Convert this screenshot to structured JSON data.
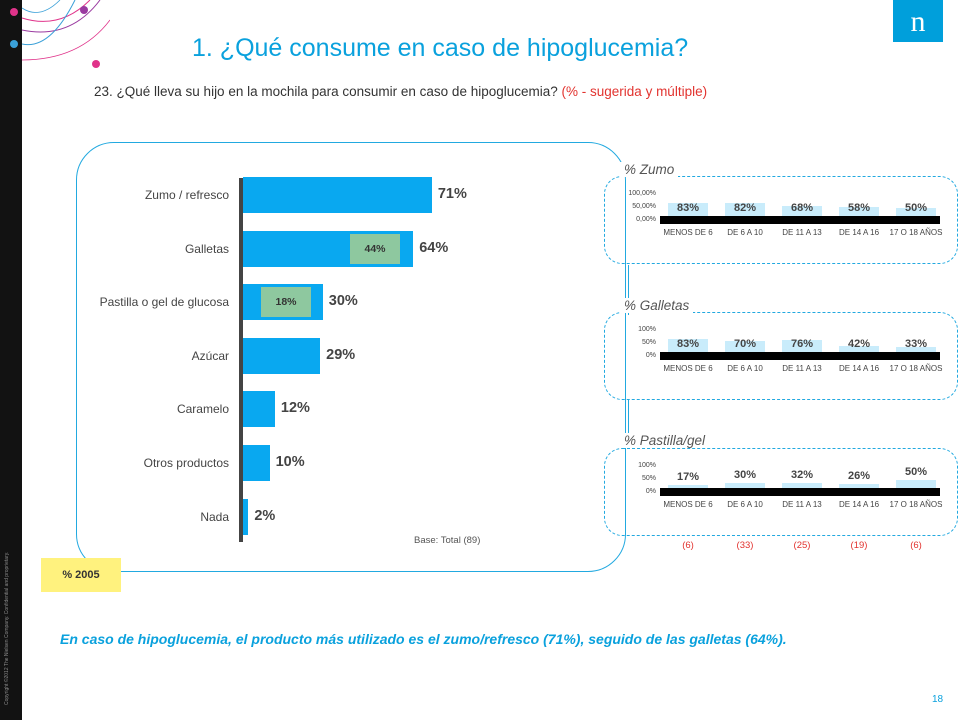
{
  "header": {
    "title": "1. ¿Qué consume en caso de hipoglucemia?",
    "question": "23. ¿Qué lleva su hijo en la mochila para consumir en caso de hipoglucemia?",
    "question_note": "(% - sugerida y múltiple)"
  },
  "brand": {
    "logo_letter": "n",
    "logo_color": "#009fdb",
    "accent": "#0aa1dd",
    "bar_color": "#09a8f0",
    "old_bar_color": "#8ec89f"
  },
  "copyright": "Copyright ©2012 The Nielsen Company. Confidential and proprietary.",
  "chart_data": [
    {
      "type": "bar",
      "orientation": "horizontal",
      "categories": [
        "Zumo / refresco",
        "Galletas",
        "Pastilla o gel de glucosa",
        "Azúcar",
        "Caramelo",
        "Otros productos",
        "Nada"
      ],
      "series": [
        {
          "values": [
            71,
            64,
            30,
            29,
            12,
            10,
            2
          ],
          "labels": [
            "71%",
            "64%",
            "30%",
            "29%",
            "12%",
            "10%",
            "2%"
          ]
        },
        {
          "name": "% 2005",
          "values": [
            null,
            44,
            18,
            null,
            null,
            null,
            null
          ],
          "labels": [
            "",
            "44%",
            "18%",
            "",
            "",
            "",
            ""
          ]
        }
      ],
      "base_note": "Base: Total (89)",
      "legend_label": "% 2005",
      "xlim": [
        0,
        100
      ]
    },
    {
      "type": "bar",
      "title": "% Zumo",
      "categories": [
        "MENOS DE 6",
        "DE 6 A 10",
        "DE 11 A 13",
        "DE 14 A 16",
        "17 O 18 AÑOS"
      ],
      "values": [
        83,
        82,
        68,
        58,
        50
      ],
      "labels": [
        "83%",
        "82%",
        "68%",
        "58%",
        "50%"
      ],
      "yticks": [
        "100,00%",
        "50,00%",
        "0,00%"
      ],
      "ylim": [
        0,
        100
      ]
    },
    {
      "type": "bar",
      "title": "% Galletas",
      "categories": [
        "MENOS DE 6",
        "DE 6 A 10",
        "DE 11 A 13",
        "DE 14 A 16",
        "17 O 18 AÑOS"
      ],
      "values": [
        83,
        70,
        76,
        42,
        33
      ],
      "labels": [
        "83%",
        "70%",
        "76%",
        "42%",
        "33%"
      ],
      "yticks": [
        "100%",
        "50%",
        "0%"
      ],
      "ylim": [
        0,
        100
      ]
    },
    {
      "type": "bar",
      "title": "% Pastilla/gel",
      "categories": [
        "MENOS DE 6",
        "DE 6 A 10",
        "DE 11 A 13",
        "DE 14 A 16",
        "17 O 18 AÑOS"
      ],
      "values": [
        17,
        30,
        32,
        26,
        50
      ],
      "labels": [
        "17%",
        "30%",
        "32%",
        "26%",
        "50%"
      ],
      "yticks": [
        "100%",
        "50%",
        "0%"
      ],
      "ylim": [
        0,
        100
      ]
    }
  ],
  "sample_sizes": [
    "(6)",
    "(33)",
    "(25)",
    "(19)",
    "(6)"
  ],
  "summary": "En caso de hipoglucemia, el producto más utilizado es el zumo/refresco (71%), seguido de las galletas (64%).",
  "page_number": "18"
}
